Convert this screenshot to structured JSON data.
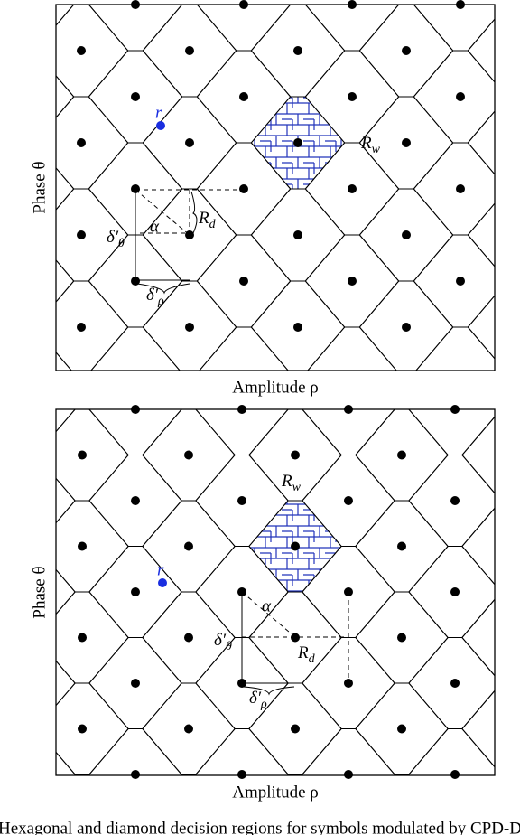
{
  "panels": [
    {
      "x_label": "Amplitude ρ",
      "y_label": "Phase θ",
      "labels": {
        "r": "r",
        "R_w": {
          "main": "R",
          "sub": "w"
        },
        "R_d": {
          "main": "R",
          "sub": "d"
        },
        "alpha": "α",
        "delta_theta": {
          "main": "δ′",
          "sub": "θ"
        },
        "delta_rho": {
          "main": "δ′",
          "sub": "ρ"
        }
      }
    },
    {
      "x_label": "Amplitude ρ",
      "y_label": "Phase θ",
      "labels": {
        "r": "r",
        "R_w": {
          "main": "R",
          "sub": "w"
        },
        "R_d": {
          "main": "R",
          "sub": "d"
        },
        "alpha": "α",
        "delta_theta": {
          "main": "δ′",
          "sub": "θ"
        },
        "delta_rho": {
          "main": "δ′",
          "sub": "ρ"
        }
      }
    }
  ],
  "caption": "Hexagonal and diamond decision regions for symbols modulated by CPD-D"
}
